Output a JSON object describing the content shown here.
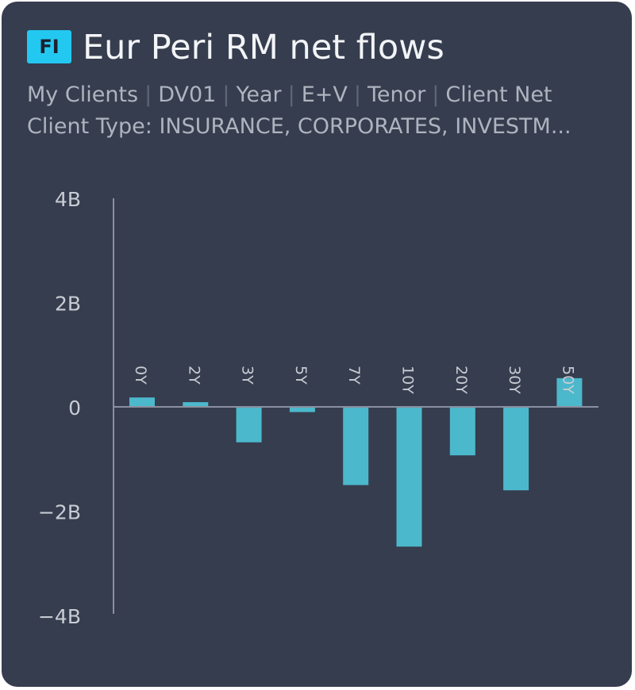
{
  "widget": {
    "badge": "FI",
    "title": "Eur Peri RM net flows",
    "filters": [
      "My Clients",
      "DV01",
      "Year",
      "E+V",
      "Tenor",
      "Client Net"
    ],
    "client_type": "Client Type: INSURANCE, CORPORATES, INVESTM..."
  },
  "colors": {
    "background": "#363d4e",
    "bar": "#4cb8cc",
    "axis": "#8a90a0",
    "text": "#c8ccd4",
    "badge": "#23c8f0"
  },
  "chart_data": {
    "type": "bar",
    "categories": [
      "0Y",
      "2Y",
      "3Y",
      "5Y",
      "7Y",
      "10Y",
      "20Y",
      "30Y",
      "50Y"
    ],
    "values": [
      0.18,
      0.09,
      -0.68,
      -0.1,
      -1.5,
      -2.68,
      -0.93,
      -1.6,
      0.55
    ],
    "y_ticks": [
      4,
      2,
      0,
      -2,
      -4
    ],
    "y_tick_labels": [
      "4B",
      "2B",
      "0",
      "−2B",
      "−4B"
    ],
    "ylim": [
      -4,
      4
    ],
    "title": "",
    "xlabel": "",
    "ylabel": "",
    "grid": false
  }
}
